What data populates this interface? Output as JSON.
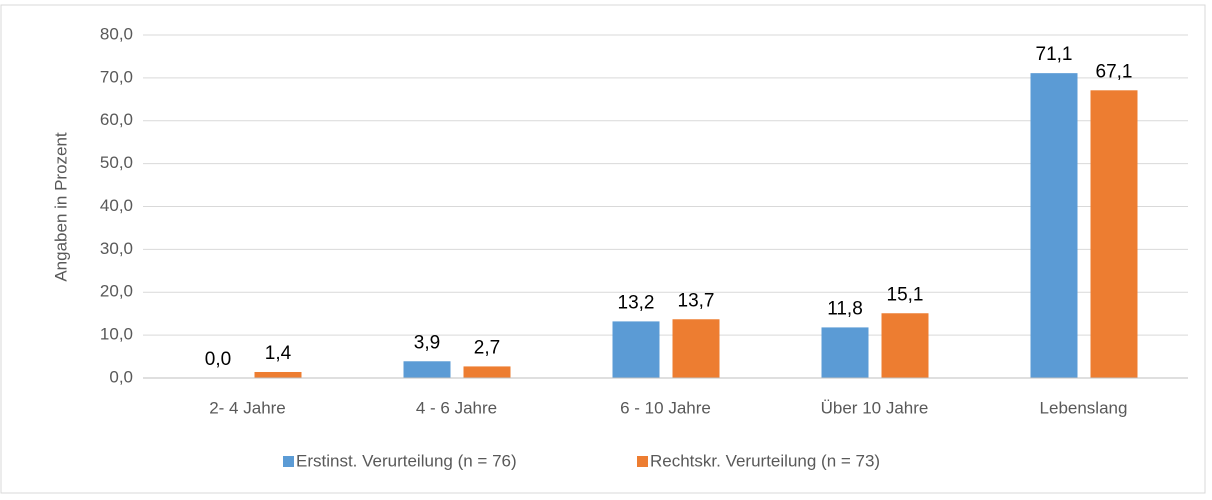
{
  "chart_data": {
    "type": "bar",
    "y_axis_label": "Angaben in Prozent",
    "categories": [
      "2- 4 Jahre",
      "4 - 6 Jahre",
      "6 - 10 Jahre",
      "Über 10 Jahre",
      "Lebenslang"
    ],
    "series": [
      {
        "name": "Erstinst. Verurteilung (n = 76)",
        "color": "#5b9bd5",
        "values": [
          0.0,
          3.9,
          13.2,
          11.8,
          71.1
        ],
        "value_labels": [
          "0,0",
          "3,9",
          "13,2",
          "11,8",
          "71,1"
        ]
      },
      {
        "name": "Rechtskr. Verurteilung (n = 73)",
        "color": "#ed7d31",
        "values": [
          1.4,
          2.7,
          13.7,
          15.1,
          67.1
        ],
        "value_labels": [
          "1,4",
          "2,7",
          "13,7",
          "15,1",
          "67,1"
        ]
      }
    ],
    "ylim": [
      0,
      80
    ],
    "yticks": [
      {
        "value": 0,
        "label": "0,0"
      },
      {
        "value": 10,
        "label": "10,0"
      },
      {
        "value": 20,
        "label": "20,0"
      },
      {
        "value": 30,
        "label": "30,0"
      },
      {
        "value": 40,
        "label": "40,0"
      },
      {
        "value": 50,
        "label": "50,0"
      },
      {
        "value": 60,
        "label": "60,0"
      },
      {
        "value": 70,
        "label": "70,0"
      },
      {
        "value": 80,
        "label": "80,0"
      }
    ],
    "grid": true,
    "legend": "bottom"
  }
}
